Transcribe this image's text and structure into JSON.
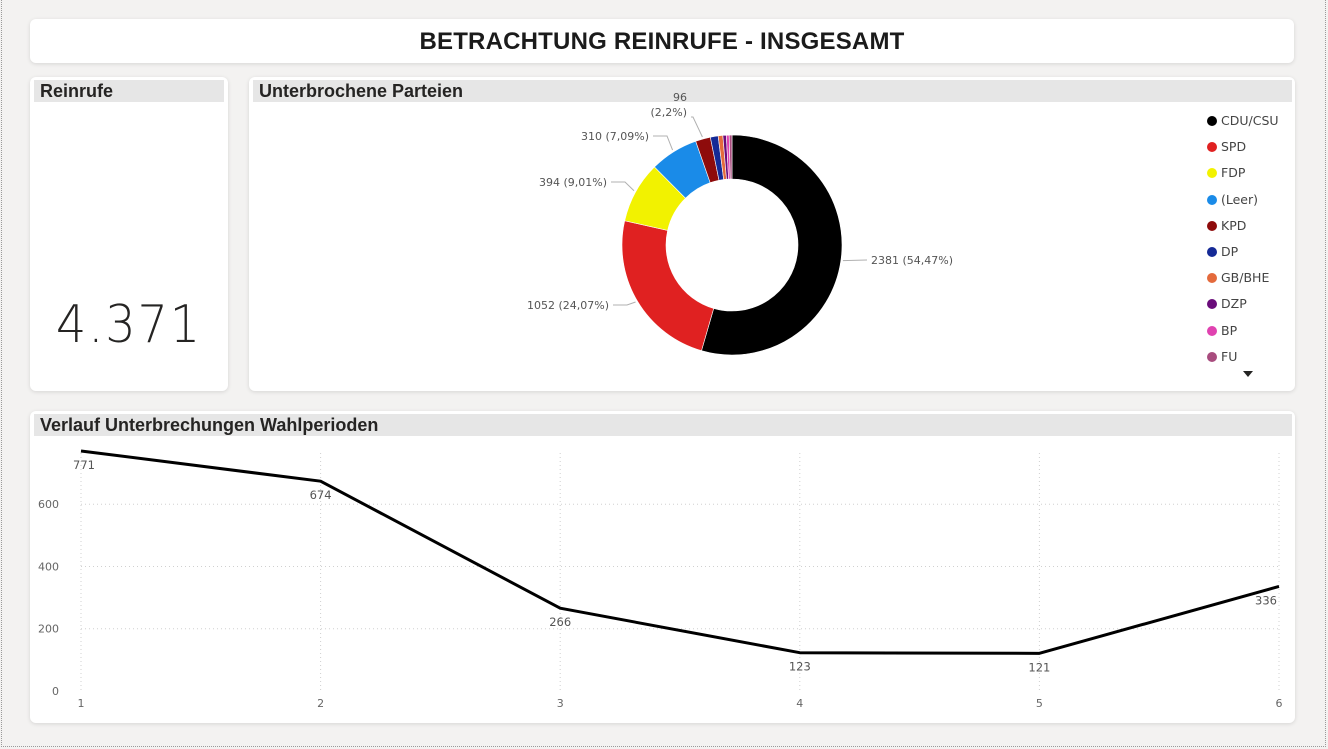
{
  "title": "BETRACHTUNG REINRUFE - INSGESAMT",
  "kpi": {
    "header": "Reinrufe",
    "value": "4.371"
  },
  "donut": {
    "header": "Unterbrochene Parteien",
    "legend": [
      {
        "label": "CDU/CSU",
        "color": "#000000"
      },
      {
        "label": "SPD",
        "color": "#e02121"
      },
      {
        "label": "FDP",
        "color": "#f2f200"
      },
      {
        "label": "(Leer)",
        "color": "#1a8be8"
      },
      {
        "label": "KPD",
        "color": "#8e0b0b"
      },
      {
        "label": "DP",
        "color": "#152a96"
      },
      {
        "label": "GB/BHE",
        "color": "#e46a3c"
      },
      {
        "label": "DZP",
        "color": "#6a0c7a"
      },
      {
        "label": "BP",
        "color": "#e042b0"
      },
      {
        "label": "FU",
        "color": "#a84c7e"
      }
    ]
  },
  "line": {
    "header": "Verlauf Unterbrechungen Wahlperioden"
  },
  "chart_data": [
    {
      "type": "pie",
      "title": "Unterbrochene Parteien",
      "donut": true,
      "legend_position": "right",
      "slices": [
        {
          "label": "CDU/CSU",
          "value": 2381,
          "display": "2381 (54,47%)",
          "color": "#000000"
        },
        {
          "label": "SPD",
          "value": 1052,
          "display": "1052 (24,07%)",
          "color": "#e02121"
        },
        {
          "label": "FDP",
          "value": 394,
          "display": "394 (9,01%)",
          "color": "#f2f200"
        },
        {
          "label": "(Leer)",
          "value": 310,
          "display": "310 (7,09%)",
          "color": "#1a8be8"
        },
        {
          "label": "KPD",
          "value": 96,
          "display": "96 (2,2%)",
          "color": "#8e0b0b"
        },
        {
          "label": "DP",
          "value": 50,
          "display": "",
          "color": "#152a96"
        },
        {
          "label": "GB/BHE",
          "value": 30,
          "display": "",
          "color": "#e46a3c"
        },
        {
          "label": "DZP",
          "value": 22,
          "display": "",
          "color": "#6a0c7a"
        },
        {
          "label": "BP",
          "value": 18,
          "display": "",
          "color": "#e042b0"
        },
        {
          "label": "FU",
          "value": 18,
          "display": "",
          "color": "#a84c7e"
        }
      ]
    },
    {
      "type": "line",
      "title": "Verlauf Unterbrechungen Wahlperioden",
      "x": [
        1,
        2,
        3,
        4,
        5,
        6
      ],
      "values": [
        771,
        674,
        266,
        123,
        121,
        336
      ],
      "ylim": [
        0,
        771
      ],
      "yticks": [
        0,
        200,
        400,
        600
      ],
      "grid": true,
      "line_color": "#000000"
    }
  ]
}
